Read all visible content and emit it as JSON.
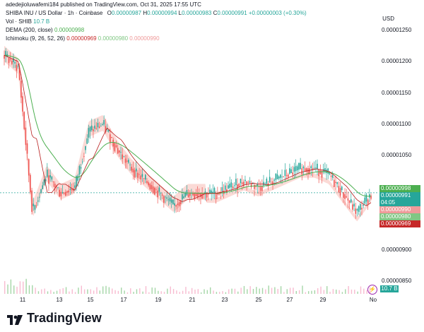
{
  "header": {
    "author_line": "adedejioluwafemi184 published on TradingView.com, Oct 31, 2025 17:55 UTC"
  },
  "symbol": {
    "name": "SHIBA INU / US Dollar · 1h · Coinbase",
    "o_label": "O",
    "o_value": "0.00000987",
    "h_label": "H",
    "h_value": "0.00000994",
    "l_label": "L",
    "l_value": "0.00000983",
    "c_label": "C",
    "c_value": "0.00000991",
    "change": "+0.00000003 (+0.30%)"
  },
  "indicators": {
    "vol_label": "Vol · SHIB",
    "vol_value": "10.7 B",
    "dema_label": "DEMA (200, close)",
    "dema_value": "0.00000998",
    "ichimoku_label": "Ichimoku (9, 26, 52, 26)",
    "ichimoku_v1": "0.00000969",
    "ichimoku_v2": "0.00000980",
    "ichimoku_v3": "0.00000990"
  },
  "currency": "USD",
  "price_axis": [
    "0.00001250",
    "0.00001200",
    "0.00001150",
    "0.00001100",
    "0.00001050",
    "0.00000900",
    "0.00000850"
  ],
  "tags": [
    {
      "text": "0.00000998",
      "color": "#4caf50"
    },
    {
      "text": "0.00000991",
      "color": "#26a69a"
    },
    {
      "text": "04:05",
      "color": "#26a69a"
    },
    {
      "text": "0.00000990",
      "color": "#ef9a9a"
    },
    {
      "text": "0.00000980",
      "color": "#81c784"
    },
    {
      "text": "0.00000969",
      "color": "#c62828"
    }
  ],
  "volume_badge": "10.7 B",
  "time_axis": [
    "11",
    "13",
    "15",
    "17",
    "19",
    "21",
    "23",
    "25",
    "27",
    "29",
    "No"
  ],
  "logo_text": "TradingView",
  "colors": {
    "up": "#26a69a",
    "down": "#ef5350",
    "dema": "#4caf50",
    "kijun": "#b71c1c",
    "cloud_bear": "#f8bbb5",
    "cloud_bull": "#c8e6c9"
  },
  "chart_data": {
    "type": "candlestick",
    "title": "SHIBA INU / US Dollar · 1h · Coinbase",
    "ylim": [
      8.3e-06,
      1.28e-05
    ],
    "y_ticks": [
      8.5e-06,
      9e-06,
      1.05e-05,
      1.1e-05,
      1.15e-05,
      1.2e-05,
      1.25e-05
    ],
    "x_ticks": [
      "11",
      "13",
      "15",
      "17",
      "19",
      "21",
      "23",
      "25",
      "27",
      "29",
      "No"
    ],
    "close_approx": [
      1.21e-05,
      1.19e-05,
      9.6e-06,
      1.02e-05,
      9.9e-06,
      1e-05,
      1.09e-05,
      1.1e-05,
      1.06e-05,
      1.03e-05,
      1.01e-05,
      9.9e-06,
      9.7e-06,
      9.9e-06,
      9.9e-06,
      9.9e-06,
      1e-05,
      1.01e-05,
      1e-05,
      1.01e-05,
      1.02e-05,
      1.03e-05,
      1.03e-05,
      1.02e-05,
      9.9e-06,
      9.6e-06,
      9.9e-06
    ],
    "last_close": 9.91e-06,
    "dema_last": 9.98e-06
  }
}
